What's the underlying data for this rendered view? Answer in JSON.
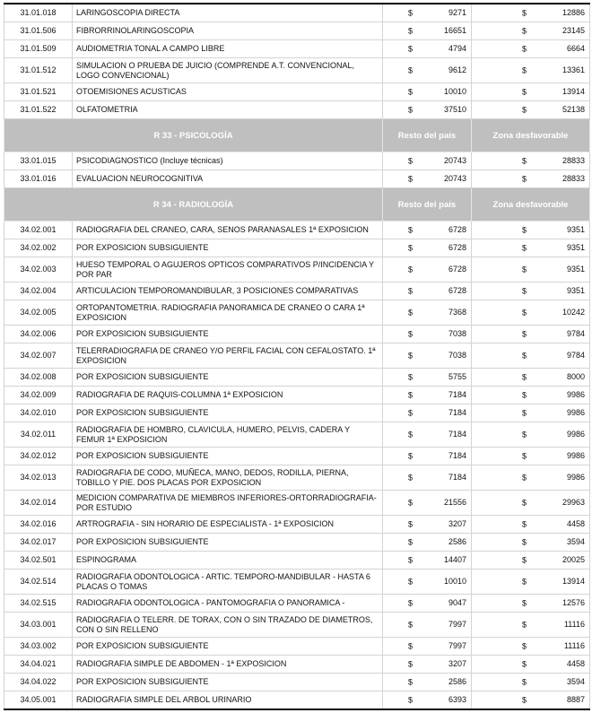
{
  "currency": "$",
  "rows": [
    {
      "type": "item",
      "code": "31.01.018",
      "desc": "LARINGOSCOPIA DIRECTA",
      "resto": "9271",
      "zona": "12886"
    },
    {
      "type": "item",
      "code": "31.01.506",
      "desc": "FIBRORRINOLARINGOSCOPIA",
      "resto": "16651",
      "zona": "23145"
    },
    {
      "type": "item",
      "code": "31.01.509",
      "desc": "AUDIOMETRIA TONAL A CAMPO LIBRE",
      "resto": "4794",
      "zona": "6664"
    },
    {
      "type": "item",
      "code": "31.01.512",
      "desc": "SIMULACION O PRUEBA DE JUICIO (COMPRENDE A.T. CONVENCIONAL, LOGO CONVENCIONAL)",
      "resto": "9612",
      "zona": "13361",
      "double": true
    },
    {
      "type": "item",
      "code": "31.01.521",
      "desc": "OTOEMISIONES ACUSTICAS",
      "resto": "10010",
      "zona": "13914"
    },
    {
      "type": "item",
      "code": "31.01.522",
      "desc": "OLFATOMETRIA",
      "resto": "37510",
      "zona": "52138"
    },
    {
      "type": "header",
      "title": "R 33 - PSICOLOGÍA",
      "resto": "Resto del país",
      "zona": "Zona desfavorable"
    },
    {
      "type": "item",
      "code": "33.01.015",
      "desc": "PSICODIAGNOSTICO (Incluye técnicas)",
      "resto": "20743",
      "zona": "28833"
    },
    {
      "type": "item",
      "code": "33.01.016",
      "desc": "EVALUACION NEUROCOGNITIVA",
      "resto": "20743",
      "zona": "28833"
    },
    {
      "type": "header",
      "title": "R 34 - RADIOLOGÍA",
      "resto": "Resto del país",
      "zona": "Zona desfavorable"
    },
    {
      "type": "item",
      "code": "34.02.001",
      "desc": "RADIOGRAFIA DEL CRANEO, CARA, SENOS PARANASALES 1ª EXPOSICION",
      "resto": "6728",
      "zona": "9351"
    },
    {
      "type": "item",
      "code": "34.02.002",
      "desc": "POR EXPOSICION SUBSIGUIENTE",
      "resto": "6728",
      "zona": "9351"
    },
    {
      "type": "item",
      "code": "34.02.003",
      "desc": "HUESO TEMPORAL O AGUJEROS OPTICOS COMPARATIVOS P/INCIDENCIA Y POR PAR",
      "resto": "6728",
      "zona": "9351",
      "double": true
    },
    {
      "type": "item",
      "code": "34.02.004",
      "desc": "ARTICULACION TEMPOROMANDIBULAR, 3 POSICIONES COMPARATIVAS",
      "resto": "6728",
      "zona": "9351"
    },
    {
      "type": "item",
      "code": "34.02.005",
      "desc": "ORTOPANTOMETRIA. RADIOGRAFIA PANORAMICA DE CRANEO O CARA 1ª EXPOSICION",
      "resto": "7368",
      "zona": "10242",
      "double": true
    },
    {
      "type": "item",
      "code": "34.02.006",
      "desc": "POR EXPOSICION SUBSIGUIENTE",
      "resto": "7038",
      "zona": "9784"
    },
    {
      "type": "item",
      "code": "34.02.007",
      "desc": "TELERRADIOGRAFIA DE CRANEO Y/O PERFIL FACIAL CON CEFALOSTATO. 1ª EXPOSICION",
      "resto": "7038",
      "zona": "9784",
      "double": true
    },
    {
      "type": "item",
      "code": "34.02.008",
      "desc": "POR EXPOSICION SUBSIGUIENTE",
      "resto": "5755",
      "zona": "8000"
    },
    {
      "type": "item",
      "code": "34.02.009",
      "desc": "RADIOGRAFIA DE RAQUIS-COLUMNA 1ª EXPOSICION",
      "resto": "7184",
      "zona": "9986"
    },
    {
      "type": "item",
      "code": "34.02.010",
      "desc": "POR EXPOSICION SUBSIGUIENTE",
      "resto": "7184",
      "zona": "9986"
    },
    {
      "type": "item",
      "code": "34.02.011",
      "desc": "RADIOGRAFIA DE HOMBRO, CLAVICULA, HUMERO, PELVIS, CADERA Y FEMUR 1ª EXPOSICION",
      "resto": "7184",
      "zona": "9986",
      "double": true
    },
    {
      "type": "item",
      "code": "34.02.012",
      "desc": "POR EXPOSICION SUBSIGUIENTE",
      "resto": "7184",
      "zona": "9986"
    },
    {
      "type": "item",
      "code": "34.02.013",
      "desc": "RADIOGRAFIA DE CODO, MUÑECA, MANO, DEDOS, RODILLA, PIERNA, TOBILLO Y PIE. DOS PLACAS POR EXPOSICION",
      "resto": "7184",
      "zona": "9986",
      "double": true
    },
    {
      "type": "item",
      "code": "34.02.014",
      "desc": "MEDICION COMPARATIVA DE MIEMBROS INFERIORES-ORTORRADIOGRAFIA-POR ESTUDIO",
      "resto": "21556",
      "zona": "29963",
      "double": true
    },
    {
      "type": "item",
      "code": "34.02.016",
      "desc": "ARTROGRAFIA - SIN HORARIO DE ESPECIALISTA - 1ª EXPOSICION",
      "resto": "3207",
      "zona": "4458"
    },
    {
      "type": "item",
      "code": "34.02.017",
      "desc": "POR EXPOSICION SUBSIGUIENTE",
      "resto": "2586",
      "zona": "3594"
    },
    {
      "type": "item",
      "code": "34.02.501",
      "desc": "ESPINOGRAMA",
      "resto": "14407",
      "zona": "20025"
    },
    {
      "type": "item",
      "code": "34.02.514",
      "desc": "RADIOGRAFIA ODONTOLOGICA - ARTIC. TEMPORO-MANDIBULAR - HASTA 6 PLACAS O TOMAS",
      "resto": "10010",
      "zona": "13914",
      "double": true
    },
    {
      "type": "item",
      "code": "34.02.515",
      "desc": "RADIOGRAFIA ODONTOLOGICA - PANTOMOGRAFIA O PANORAMICA -",
      "resto": "9047",
      "zona": "12576"
    },
    {
      "type": "item",
      "code": "34.03.001",
      "desc": "RADIOGRAFIA O TELERR. DE TORAX, CON O SIN TRAZADO DE DIAMETROS, CON O SIN RELLENO",
      "resto": "7997",
      "zona": "11116",
      "double": true
    },
    {
      "type": "item",
      "code": "34.03.002",
      "desc": "POR EXPOSICION SUBSIGUIENTE",
      "resto": "7997",
      "zona": "11116"
    },
    {
      "type": "item",
      "code": "34.04.021",
      "desc": "RADIOGRAFIA SIMPLE DE ABDOMEN - 1ª EXPOSICION",
      "resto": "3207",
      "zona": "4458"
    },
    {
      "type": "item",
      "code": "34.04.022",
      "desc": "POR EXPOSICION SUBSIGUIENTE",
      "resto": "2586",
      "zona": "3594"
    },
    {
      "type": "item",
      "code": "34.05.001",
      "desc": "RADIOGRAFIA SIMPLE DEL ARBOL URINARIO",
      "resto": "6393",
      "zona": "8887"
    }
  ]
}
